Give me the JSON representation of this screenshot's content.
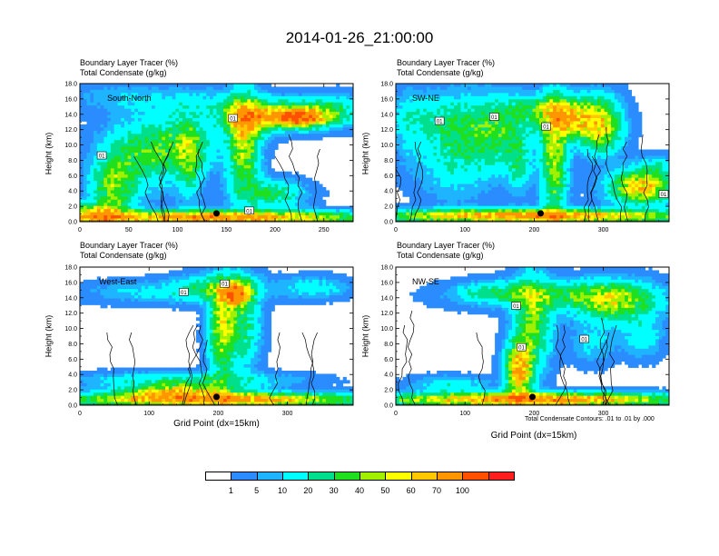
{
  "title": "2014-01-26_21:00:00",
  "panel_header_line1": "Boundary Layer Tracer   (%)",
  "panel_header_line2": "Total Condensate   (g/kg)",
  "ylabel": "Height (km)",
  "xlabel": "Grid Point (dx=15km)",
  "footnote": "Total Condensate Contours: .01 to .01 by .000",
  "contour_label": "01",
  "colorbar": {
    "colors": [
      "#ffffff",
      "#2a8cff",
      "#1eb4ff",
      "#00ffff",
      "#00e08c",
      "#1ee01e",
      "#a0f000",
      "#ffff00",
      "#ffc800",
      "#ff9600",
      "#ff5000",
      "#ff1e1e"
    ],
    "labels": [
      "1",
      "5",
      "10",
      "20",
      "30",
      "40",
      "50",
      "60",
      "70",
      "100"
    ]
  },
  "chart_data": [
    {
      "type": "heatmap",
      "section": "South-North",
      "ylim": [
        0,
        18
      ],
      "xlim": [
        0,
        280
      ],
      "yticks": [
        "0.0",
        "2.0",
        "4.0",
        "6.0",
        "8.0",
        "10.0",
        "12.0",
        "14.0",
        "16.0",
        "18.0"
      ],
      "xticks": [
        0,
        50,
        100,
        150,
        200,
        250
      ],
      "xlabel": ""
    },
    {
      "type": "heatmap",
      "section": "SW-NE",
      "ylim": [
        0,
        18
      ],
      "xlim": [
        0,
        395
      ],
      "yticks": [
        "0.0",
        "2.0",
        "4.0",
        "6.0",
        "8.0",
        "10.0",
        "12.0",
        "14.0",
        "16.0",
        "18.0"
      ],
      "xticks": [
        0,
        100,
        200,
        300
      ],
      "xlabel": ""
    },
    {
      "type": "heatmap",
      "section": "West-East",
      "ylim": [
        0,
        18
      ],
      "xlim": [
        0,
        395
      ],
      "yticks": [
        "0.0",
        "2.0",
        "4.0",
        "6.0",
        "8.0",
        "10.0",
        "12.0",
        "14.0",
        "16.0",
        "18.0"
      ],
      "xticks": [
        0,
        100,
        200,
        300
      ],
      "xlabel": "Grid Point (dx=15km)"
    },
    {
      "type": "heatmap",
      "section": "NW-SE",
      "ylim": [
        0,
        18
      ],
      "xlim": [
        0,
        395
      ],
      "yticks": [
        "0.0",
        "2.0",
        "4.0",
        "6.0",
        "8.0",
        "10.0",
        "12.0",
        "14.0",
        "16.0",
        "18.0"
      ],
      "xticks": [
        0,
        100,
        200,
        300
      ],
      "xlabel": "Grid Point (dx=15km)"
    }
  ]
}
